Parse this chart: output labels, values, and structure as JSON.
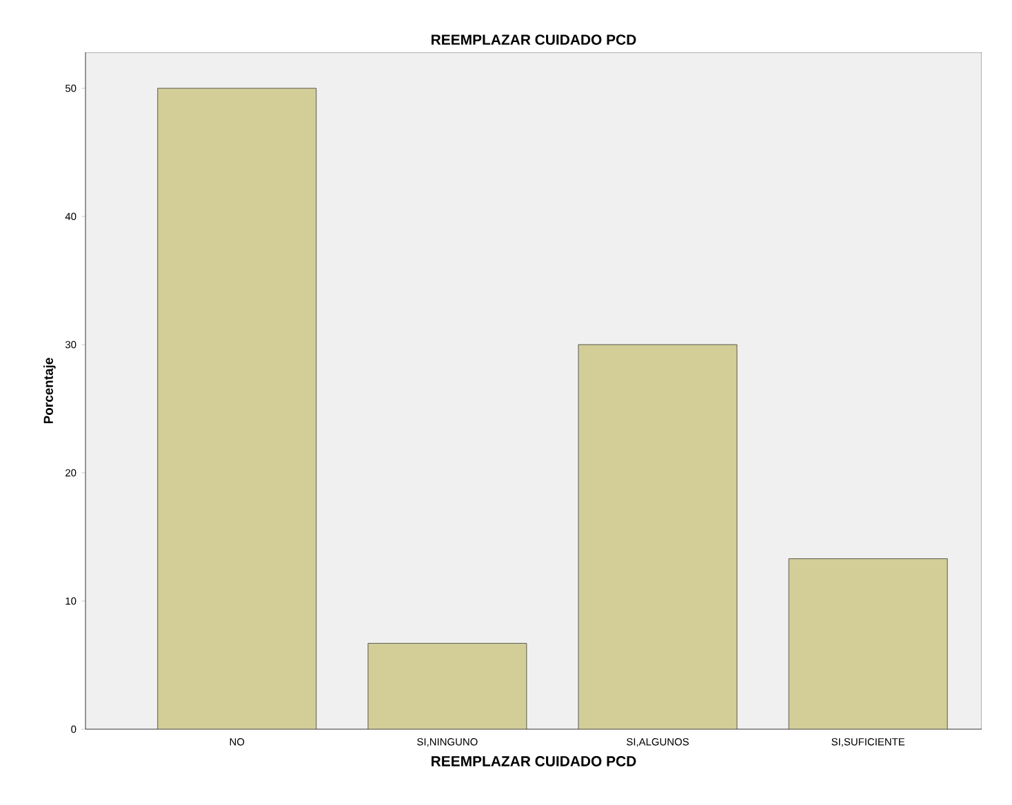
{
  "chart_data": {
    "type": "bar",
    "title": "REEMPLAZAR CUIDADO PCD",
    "xlabel": "REEMPLAZAR CUIDADO PCD",
    "ylabel": "Porcentaje",
    "categories": [
      "NO",
      "SI,NINGUNO",
      "SI,ALGUNOS",
      "SI,SUFICIENTE"
    ],
    "values": [
      50,
      6.7,
      30,
      13.3
    ],
    "color": "#d3ce97",
    "ylim": [
      0,
      52.8
    ],
    "yticks": [
      0,
      10,
      20,
      30,
      40,
      50
    ],
    "grid": false
  }
}
